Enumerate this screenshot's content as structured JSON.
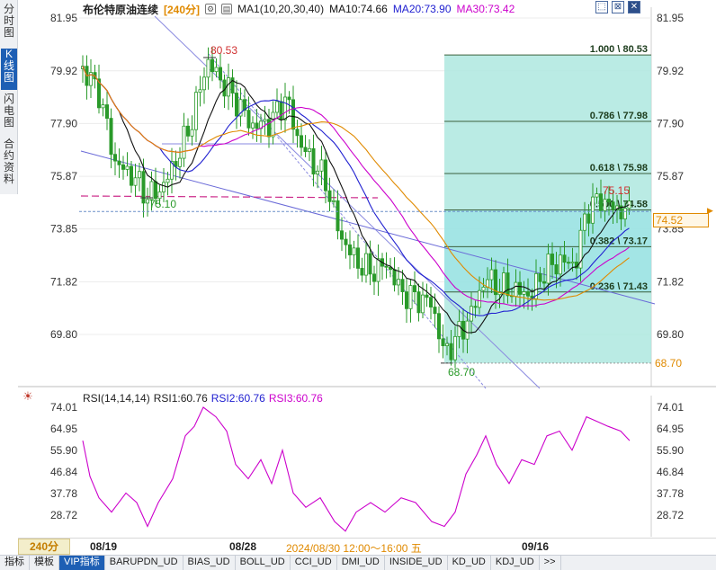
{
  "sidebar": {
    "tabs": [
      {
        "label": "分时图",
        "active": false
      },
      {
        "label": "K线图",
        "active": true
      },
      {
        "label": "闪电图",
        "active": false
      },
      {
        "label": "合约资料",
        "active": false
      }
    ]
  },
  "header": {
    "title": "布伦特原油连续",
    "period_tag": "[240分]",
    "ma_settings": "MA1(10,20,30,40)",
    "ma10_label": "MA10:74.66",
    "ma20_label": "MA20:73.90",
    "ma30_label": "MA30:73.42"
  },
  "window_buttons": [
    {
      "icon": "restore-icon",
      "glyph": "⬚"
    },
    {
      "icon": "maximize-icon",
      "glyph": "⊠"
    },
    {
      "icon": "close-icon",
      "glyph": "✕"
    }
  ],
  "price_axis": {
    "ticks": [
      "81.95",
      "79.92",
      "77.90",
      "75.87",
      "73.85",
      "71.82",
      "69.80"
    ],
    "low_label": "68.70",
    "current_price": "74.52"
  },
  "annotations": {
    "high": "80.53",
    "swing_low": "75.10",
    "recent_high": "75.15",
    "low": "68.70"
  },
  "fibonacci": [
    {
      "label": "1.000 \\ 80.53",
      "price": 80.53
    },
    {
      "label": "0.786 \\ 77.98",
      "price": 77.98
    },
    {
      "label": "0.618 \\ 75.98",
      "price": 75.98
    },
    {
      "label": "0.500 \\ 74.58",
      "price": 74.58
    },
    {
      "label": "0.382 \\ 73.17",
      "price": 73.17
    },
    {
      "label": "0.236 \\ 71.43",
      "price": 71.43
    }
  ],
  "rsi": {
    "header_label": "RSI(14,14,14)",
    "rsi1_label": "RSI1:60.76",
    "rsi2_label": "RSI2:60.76",
    "rsi3_label": "RSI3:60.76",
    "ticks": [
      "74.01",
      "64.95",
      "55.90",
      "46.84",
      "37.78",
      "28.72"
    ],
    "series_color": "#cc00cc"
  },
  "timebar": {
    "period": "240分",
    "dates": [
      "08/19",
      "08/28",
      "09/16"
    ],
    "cursor_label": "2024/08/30 12:00～16:00 五"
  },
  "bottom_tabs": [
    {
      "label": "指标",
      "active": false
    },
    {
      "label": "模板",
      "active": false
    },
    {
      "label": "VIP指标",
      "active": true
    },
    {
      "label": "BARUPDN_UD",
      "active": false
    },
    {
      "label": "BIAS_UD",
      "active": false
    },
    {
      "label": "BOLL_UD",
      "active": false
    },
    {
      "label": "CCI_UD",
      "active": false
    },
    {
      "label": "DMI_UD",
      "active": false
    },
    {
      "label": "INSIDE_UD",
      "active": false
    },
    {
      "label": "KD_UD",
      "active": false
    },
    {
      "label": "KDJ_UD",
      "active": false
    },
    {
      "label": ">>",
      "active": false
    }
  ],
  "colors": {
    "up": "#2a9a2a",
    "down": "#2a9a2a",
    "fib_fill": "#aee8df",
    "ma10": "#111111",
    "ma20": "#2020d0",
    "ma30": "#cc00cc",
    "ma40": "#e08a00",
    "accent": "#e08a00"
  }
}
